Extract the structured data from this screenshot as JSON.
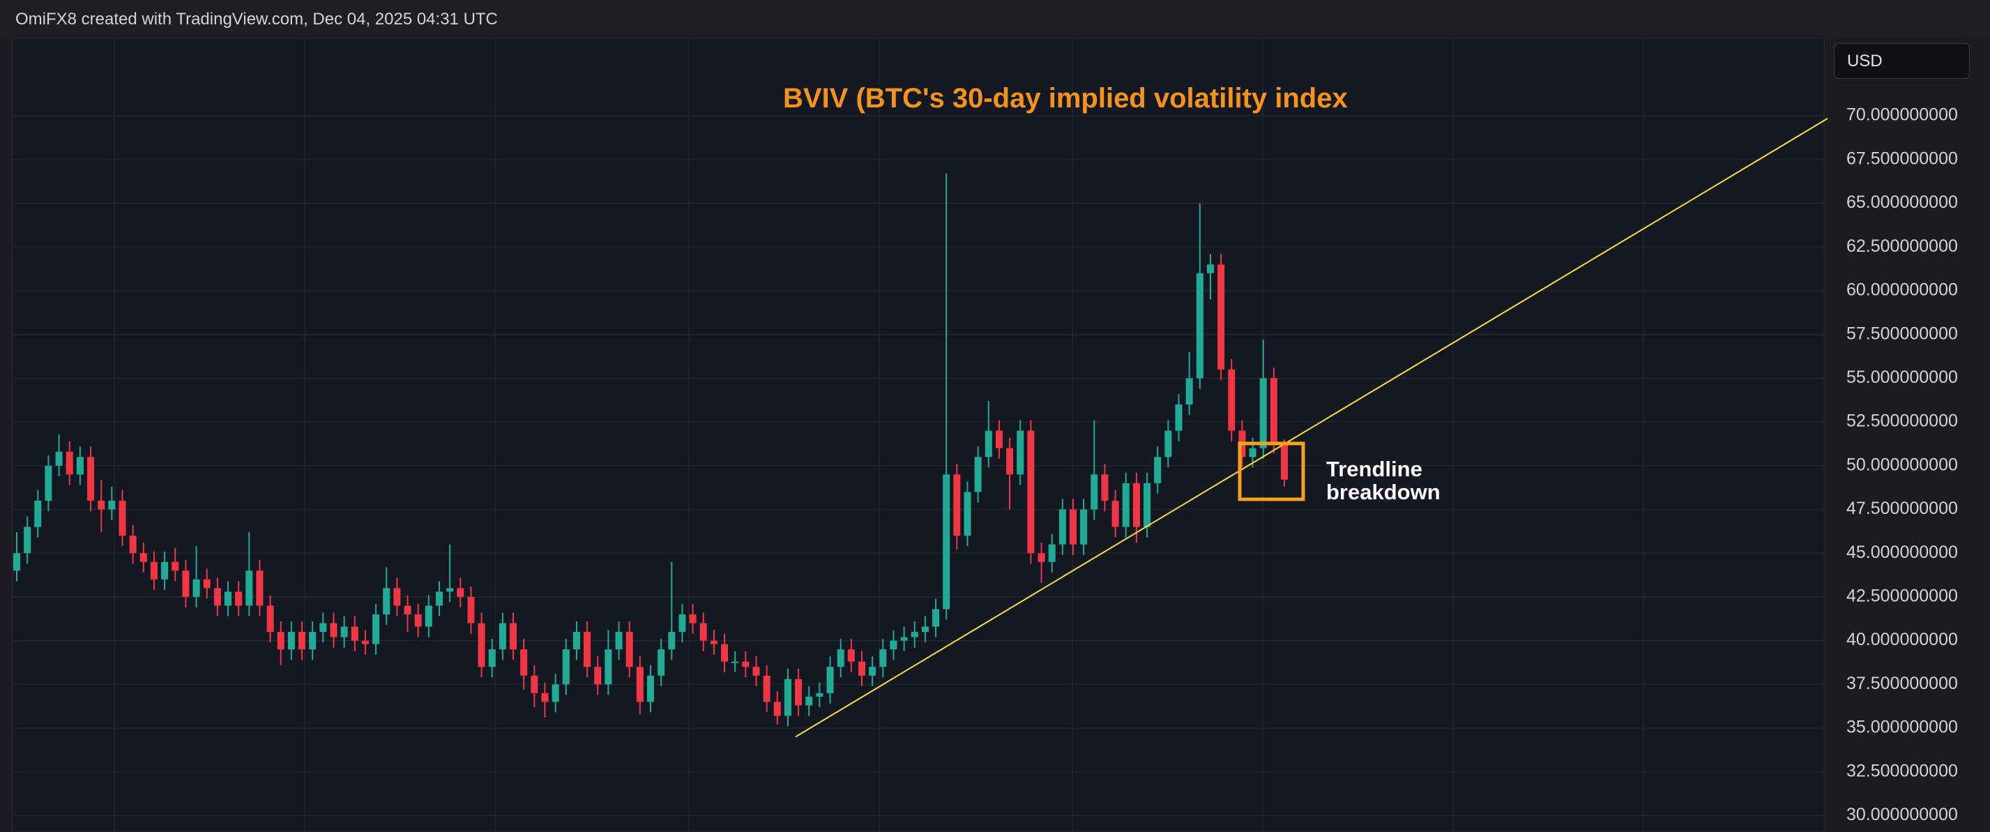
{
  "header": {
    "text": "OmiFX8 created with TradingView.com, Dec 04, 2025 04:31 UTC"
  },
  "chart_data": {
    "type": "candlestick",
    "title": "BVIV (BTC's 30-day implied volatility index",
    "annotation": "Trendline breakdown",
    "currency": "USD",
    "open": [
      44,
      45,
      46.5,
      48,
      50,
      50.8,
      49.5,
      50.5,
      48,
      47.5,
      48,
      46,
      45,
      44.5,
      43.5,
      44.5,
      44,
      42.5,
      43.5,
      43,
      42,
      42.8,
      42,
      44,
      42,
      40.5,
      39.5,
      40.5,
      39.5,
      40.5,
      41,
      40.2,
      40.8,
      40,
      39.8,
      41.5,
      43,
      42,
      41.5,
      40.8,
      42,
      42.8,
      43,
      42.5,
      41,
      38.5,
      39.5,
      41,
      39.5,
      38,
      37,
      36.5,
      37.5,
      39.5,
      40.5,
      38.5,
      37.5,
      39.5,
      40.5,
      38.5,
      36.5,
      38,
      39.5,
      40.5,
      41.5,
      41,
      40,
      39.8,
      38.8,
      38.8,
      38.5,
      38,
      36.5,
      35.7,
      37.8,
      36.3,
      36.8,
      37,
      38.5,
      39.5,
      38.8,
      38,
      38.5,
      39.5,
      40,
      40.2,
      40.5,
      40.8,
      41.8,
      49.5,
      46,
      48.5,
      50.5,
      52,
      51,
      49.5,
      52,
      45,
      44.5,
      45.5,
      47.5,
      45.5,
      47.5,
      49.5,
      48,
      46.5,
      49,
      46.5,
      49,
      50.5,
      52,
      53.5,
      55,
      61,
      61.5,
      55.5,
      52,
      50.5,
      51,
      55,
      51.3
    ],
    "high": [
      46.2,
      47.1,
      48.6,
      50.6,
      51.8,
      51.4,
      51.1,
      51.1,
      49.2,
      48.8,
      48.6,
      46.6,
      45.6,
      45.1,
      45.1,
      45.3,
      44.6,
      45.4,
      44.1,
      43.6,
      43.4,
      43.4,
      46.2,
      44.6,
      42.6,
      41.1,
      41.1,
      41.1,
      41.1,
      41.6,
      41.6,
      41.4,
      41.4,
      40.6,
      42.1,
      44.2,
      43.6,
      42.6,
      42.1,
      42.6,
      43.4,
      45.5,
      43.6,
      43.1,
      41.6,
      40.1,
      41.6,
      41.6,
      40.1,
      38.6,
      37.6,
      38.1,
      40.1,
      41.1,
      41.1,
      39.1,
      40.6,
      41.1,
      41.1,
      39.1,
      38.6,
      40.1,
      44.5,
      42.1,
      42.1,
      41.6,
      40.6,
      40.4,
      39.4,
      39.4,
      39.1,
      38.6,
      37.1,
      38.4,
      38.4,
      37.4,
      37.6,
      39.1,
      40.1,
      40.1,
      39.4,
      39.1,
      40.1,
      40.6,
      40.8,
      41.1,
      41.4,
      42.4,
      66.7,
      50.1,
      49.1,
      51.1,
      53.7,
      52.6,
      51.6,
      52.6,
      52.6,
      45.6,
      46.1,
      48.1,
      48.1,
      48.1,
      52.6,
      50.1,
      48.6,
      49.6,
      49.6,
      49.6,
      51.1,
      52.6,
      54.1,
      56.5,
      65,
      62.1,
      62.1,
      56.1,
      52.6,
      51.6,
      57.2,
      55.6,
      51.5
    ],
    "low": [
      43.4,
      44.4,
      45.9,
      47.4,
      49.4,
      48.9,
      48.9,
      47.4,
      46.2,
      46.9,
      45.4,
      44.4,
      43.9,
      42.9,
      42.9,
      43.4,
      41.9,
      41.9,
      42.4,
      41.4,
      41.4,
      41.4,
      41.4,
      41.4,
      39.9,
      38.6,
      38.9,
      38.9,
      38.9,
      39.9,
      39.6,
      39.6,
      39.4,
      39.2,
      39.2,
      40.9,
      41.4,
      40.5,
      40.2,
      40.2,
      41.4,
      42.2,
      41.9,
      40.4,
      37.9,
      37.9,
      38.9,
      38.9,
      37.2,
      36.2,
      35.6,
      35.9,
      36.9,
      38.9,
      37.9,
      36.9,
      36.9,
      38.9,
      37.9,
      35.8,
      35.9,
      37.4,
      38.9,
      39.9,
      40.4,
      39.4,
      39.2,
      38.2,
      38.2,
      37.9,
      37.4,
      35.9,
      35.2,
      35.1,
      35.7,
      35.7,
      36.2,
      36.4,
      37.9,
      38.2,
      37.4,
      37.4,
      37.9,
      38.9,
      39.4,
      39.6,
      39.9,
      40.2,
      41.2,
      45.2,
      45.4,
      47.9,
      49.9,
      50.4,
      47.5,
      48.9,
      44.4,
      43.3,
      43.9,
      44.9,
      44.9,
      44.9,
      46.9,
      47.4,
      45.9,
      45.9,
      45.6,
      45.9,
      48.4,
      49.9,
      51.4,
      52.9,
      54.4,
      59.5,
      54.9,
      51.4,
      49.9,
      49.9,
      50.4,
      50.7,
      48.8
    ],
    "close": [
      45,
      46.5,
      48,
      50,
      50.8,
      49.5,
      50.5,
      48,
      47.5,
      48,
      46,
      45,
      44.5,
      43.5,
      44.5,
      44,
      42.5,
      43.5,
      43,
      42,
      42.8,
      42,
      44,
      42,
      40.5,
      39.5,
      40.5,
      39.5,
      40.5,
      41,
      40.2,
      40.8,
      40,
      39.8,
      41.5,
      43,
      42,
      41.5,
      40.8,
      42,
      42.8,
      43,
      42.5,
      41,
      38.5,
      39.5,
      41,
      39.5,
      38,
      37,
      36.5,
      37.5,
      39.5,
      40.5,
      38.5,
      37.5,
      39.5,
      40.5,
      38.5,
      36.5,
      38,
      39.5,
      40.5,
      41.5,
      41,
      40,
      39.8,
      38.8,
      38.8,
      38.5,
      38,
      36.5,
      35.7,
      37.8,
      36.3,
      36.8,
      37,
      38.5,
      39.5,
      38.8,
      38,
      38.5,
      39.5,
      40,
      40.2,
      40.5,
      40.8,
      41.8,
      49.5,
      46,
      48.5,
      50.5,
      52,
      51,
      49.5,
      52,
      45,
      44.5,
      45.5,
      47.5,
      45.5,
      47.5,
      49.5,
      48,
      46.5,
      49,
      46.5,
      49,
      50.5,
      52,
      53.5,
      55,
      61,
      61.5,
      55.5,
      52,
      50.5,
      51,
      55,
      51.3,
      49.2
    ],
    "up_color": "#22ab94",
    "down_color": "#f23645",
    "ylim": [
      29.06,
      74.43
    ],
    "yticks": [
      {
        "value": 30,
        "label": "30.000000000"
      },
      {
        "value": 32.5,
        "label": "32.500000000"
      },
      {
        "value": 35,
        "label": "35.000000000"
      },
      {
        "value": 37.5,
        "label": "37.500000000"
      },
      {
        "value": 40,
        "label": "40.000000000"
      },
      {
        "value": 42.5,
        "label": "42.500000000"
      },
      {
        "value": 45,
        "label": "45.000000000"
      },
      {
        "value": 47.5,
        "label": "47.500000000"
      },
      {
        "value": 50,
        "label": "50.000000000"
      },
      {
        "value": 52.5,
        "label": "52.500000000"
      },
      {
        "value": 55,
        "label": "55.000000000"
      },
      {
        "value": 57.5,
        "label": "57.500000000"
      },
      {
        "value": 60,
        "label": "60.000000000"
      },
      {
        "value": 62.5,
        "label": "62.500000000"
      },
      {
        "value": 65,
        "label": "65.000000000"
      },
      {
        "value": 67.5,
        "label": "67.500000000"
      },
      {
        "value": 70,
        "label": "70.000000000"
      }
    ],
    "grid": true,
    "trendline": {
      "y": [
        34.5,
        69.85
      ],
      "color": "#f5e13a"
    },
    "highlight_box": {
      "y": [
        51.27,
        48.08
      ],
      "color": "#f7a21b"
    }
  }
}
